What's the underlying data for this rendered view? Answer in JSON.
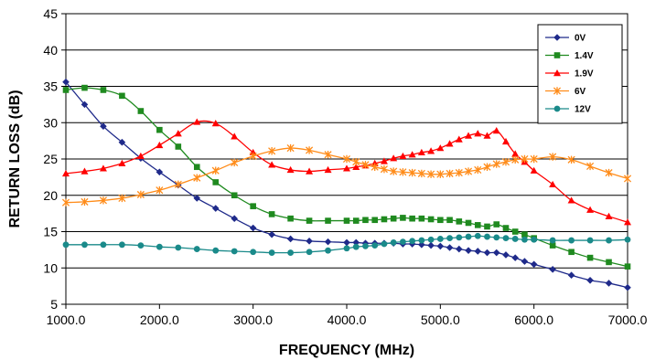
{
  "chart_data": {
    "type": "line",
    "xlabel": "FREQUENCY (MHz)",
    "ylabel": "RETURN LOSS (dB)",
    "xlim": [
      1000,
      7000
    ],
    "ylim": [
      5,
      45
    ],
    "x_ticks": [
      "1000.0",
      "2000.0",
      "3000.0",
      "4000.0",
      "5000.0",
      "6000.0",
      "7000.0"
    ],
    "y_ticks": [
      "5",
      "10",
      "15",
      "20",
      "25",
      "30",
      "35",
      "40",
      "45"
    ],
    "grid": "horizontal",
    "legend_position": "top-right",
    "series": [
      {
        "name": "0V",
        "color": "#1f2a8a",
        "marker": "diamond",
        "points": [
          [
            1000,
            35.6
          ],
          [
            1200,
            32.5
          ],
          [
            1400,
            29.5
          ],
          [
            1600,
            27.3
          ],
          [
            1800,
            25.1
          ],
          [
            2000,
            23.2
          ],
          [
            2200,
            21.4
          ],
          [
            2400,
            19.6
          ],
          [
            2600,
            18.2
          ],
          [
            2800,
            16.8
          ],
          [
            3000,
            15.5
          ],
          [
            3200,
            14.6
          ],
          [
            3400,
            14.0
          ],
          [
            3600,
            13.7
          ],
          [
            3800,
            13.6
          ],
          [
            4000,
            13.5
          ],
          [
            4100,
            13.5
          ],
          [
            4200,
            13.4
          ],
          [
            4300,
            13.4
          ],
          [
            4400,
            13.4
          ],
          [
            4500,
            13.4
          ],
          [
            4600,
            13.3
          ],
          [
            4700,
            13.3
          ],
          [
            4800,
            13.2
          ],
          [
            4900,
            13.1
          ],
          [
            5000,
            13.0
          ],
          [
            5100,
            12.8
          ],
          [
            5200,
            12.6
          ],
          [
            5300,
            12.4
          ],
          [
            5400,
            12.3
          ],
          [
            5500,
            12.1
          ],
          [
            5600,
            12.1
          ],
          [
            5700,
            11.8
          ],
          [
            5800,
            11.4
          ],
          [
            5900,
            10.9
          ],
          [
            6000,
            10.5
          ],
          [
            6200,
            9.8
          ],
          [
            6400,
            9.0
          ],
          [
            6600,
            8.3
          ],
          [
            6800,
            7.9
          ],
          [
            7000,
            7.3
          ]
        ]
      },
      {
        "name": "1.4V",
        "color": "#1f8a1f",
        "marker": "square",
        "points": [
          [
            1000,
            34.5
          ],
          [
            1200,
            34.8
          ],
          [
            1400,
            34.5
          ],
          [
            1600,
            33.7
          ],
          [
            1800,
            31.6
          ],
          [
            2000,
            29.0
          ],
          [
            2200,
            26.7
          ],
          [
            2400,
            23.9
          ],
          [
            2600,
            21.8
          ],
          [
            2800,
            20.0
          ],
          [
            3000,
            18.5
          ],
          [
            3200,
            17.4
          ],
          [
            3400,
            16.8
          ],
          [
            3600,
            16.5
          ],
          [
            3800,
            16.5
          ],
          [
            4000,
            16.5
          ],
          [
            4100,
            16.5
          ],
          [
            4200,
            16.6
          ],
          [
            4300,
            16.6
          ],
          [
            4400,
            16.7
          ],
          [
            4500,
            16.8
          ],
          [
            4600,
            16.9
          ],
          [
            4700,
            16.8
          ],
          [
            4800,
            16.8
          ],
          [
            4900,
            16.7
          ],
          [
            5000,
            16.6
          ],
          [
            5100,
            16.6
          ],
          [
            5200,
            16.4
          ],
          [
            5300,
            16.2
          ],
          [
            5400,
            15.9
          ],
          [
            5500,
            15.7
          ],
          [
            5600,
            16.0
          ],
          [
            5700,
            15.5
          ],
          [
            5800,
            15.0
          ],
          [
            5900,
            14.6
          ],
          [
            6000,
            14.1
          ],
          [
            6200,
            13.1
          ],
          [
            6400,
            12.2
          ],
          [
            6600,
            11.4
          ],
          [
            6800,
            10.8
          ],
          [
            7000,
            10.2
          ]
        ]
      },
      {
        "name": "1.9V",
        "color": "#ff0000",
        "marker": "triangle",
        "points": [
          [
            1000,
            23.0
          ],
          [
            1200,
            23.3
          ],
          [
            1400,
            23.7
          ],
          [
            1600,
            24.4
          ],
          [
            1800,
            25.4
          ],
          [
            2000,
            26.9
          ],
          [
            2200,
            28.5
          ],
          [
            2400,
            30.1
          ],
          [
            2600,
            29.9
          ],
          [
            2800,
            28.1
          ],
          [
            3000,
            25.9
          ],
          [
            3200,
            24.2
          ],
          [
            3400,
            23.5
          ],
          [
            3600,
            23.3
          ],
          [
            3800,
            23.5
          ],
          [
            4000,
            23.7
          ],
          [
            4100,
            23.9
          ],
          [
            4200,
            24.1
          ],
          [
            4300,
            24.4
          ],
          [
            4400,
            24.7
          ],
          [
            4500,
            25.1
          ],
          [
            4600,
            25.4
          ],
          [
            4700,
            25.6
          ],
          [
            4800,
            25.9
          ],
          [
            4900,
            26.1
          ],
          [
            5000,
            26.5
          ],
          [
            5100,
            27.1
          ],
          [
            5200,
            27.7
          ],
          [
            5300,
            28.2
          ],
          [
            5400,
            28.5
          ],
          [
            5500,
            28.2
          ],
          [
            5600,
            28.9
          ],
          [
            5700,
            27.4
          ],
          [
            5800,
            25.7
          ],
          [
            5900,
            24.6
          ],
          [
            6000,
            23.4
          ],
          [
            6200,
            21.5
          ],
          [
            6400,
            19.3
          ],
          [
            6600,
            18.0
          ],
          [
            6800,
            17.1
          ],
          [
            7000,
            16.3
          ]
        ]
      },
      {
        "name": "6V",
        "color": "#ff8c1a",
        "marker": "asterisk",
        "points": [
          [
            1000,
            19.0
          ],
          [
            1200,
            19.1
          ],
          [
            1400,
            19.3
          ],
          [
            1600,
            19.6
          ],
          [
            1800,
            20.1
          ],
          [
            2000,
            20.7
          ],
          [
            2200,
            21.5
          ],
          [
            2400,
            22.4
          ],
          [
            2600,
            23.4
          ],
          [
            2800,
            24.5
          ],
          [
            3000,
            25.4
          ],
          [
            3200,
            26.1
          ],
          [
            3400,
            26.5
          ],
          [
            3600,
            26.2
          ],
          [
            3800,
            25.6
          ],
          [
            4000,
            25.0
          ],
          [
            4100,
            24.6
          ],
          [
            4200,
            24.2
          ],
          [
            4300,
            23.9
          ],
          [
            4400,
            23.6
          ],
          [
            4500,
            23.3
          ],
          [
            4600,
            23.2
          ],
          [
            4700,
            23.1
          ],
          [
            4800,
            23.0
          ],
          [
            4900,
            22.9
          ],
          [
            5000,
            22.9
          ],
          [
            5100,
            23.0
          ],
          [
            5200,
            23.1
          ],
          [
            5300,
            23.3
          ],
          [
            5400,
            23.5
          ],
          [
            5500,
            23.9
          ],
          [
            5600,
            24.3
          ],
          [
            5700,
            24.6
          ],
          [
            5800,
            24.9
          ],
          [
            5900,
            25.0
          ],
          [
            6000,
            25.0
          ],
          [
            6200,
            25.3
          ],
          [
            6400,
            24.9
          ],
          [
            6600,
            24.0
          ],
          [
            6800,
            23.1
          ],
          [
            7000,
            22.3
          ]
        ]
      },
      {
        "name": "12V",
        "color": "#1a8a8a",
        "marker": "circle",
        "points": [
          [
            1000,
            13.2
          ],
          [
            1200,
            13.2
          ],
          [
            1400,
            13.2
          ],
          [
            1600,
            13.2
          ],
          [
            1800,
            13.1
          ],
          [
            2000,
            12.9
          ],
          [
            2200,
            12.8
          ],
          [
            2400,
            12.6
          ],
          [
            2600,
            12.4
          ],
          [
            2800,
            12.3
          ],
          [
            3000,
            12.2
          ],
          [
            3200,
            12.1
          ],
          [
            3400,
            12.1
          ],
          [
            3600,
            12.2
          ],
          [
            3800,
            12.4
          ],
          [
            4000,
            12.7
          ],
          [
            4100,
            12.9
          ],
          [
            4200,
            13.0
          ],
          [
            4300,
            13.1
          ],
          [
            4400,
            13.3
          ],
          [
            4500,
            13.5
          ],
          [
            4600,
            13.6
          ],
          [
            4700,
            13.7
          ],
          [
            4800,
            13.8
          ],
          [
            4900,
            13.9
          ],
          [
            5000,
            14.0
          ],
          [
            5100,
            14.1
          ],
          [
            5200,
            14.2
          ],
          [
            5300,
            14.3
          ],
          [
            5400,
            14.4
          ],
          [
            5500,
            14.3
          ],
          [
            5600,
            14.2
          ],
          [
            5700,
            14.1
          ],
          [
            5800,
            14.0
          ],
          [
            5900,
            13.9
          ],
          [
            6000,
            13.9
          ],
          [
            6200,
            13.8
          ],
          [
            6400,
            13.8
          ],
          [
            6600,
            13.8
          ],
          [
            6800,
            13.8
          ],
          [
            7000,
            13.9
          ]
        ]
      }
    ]
  }
}
